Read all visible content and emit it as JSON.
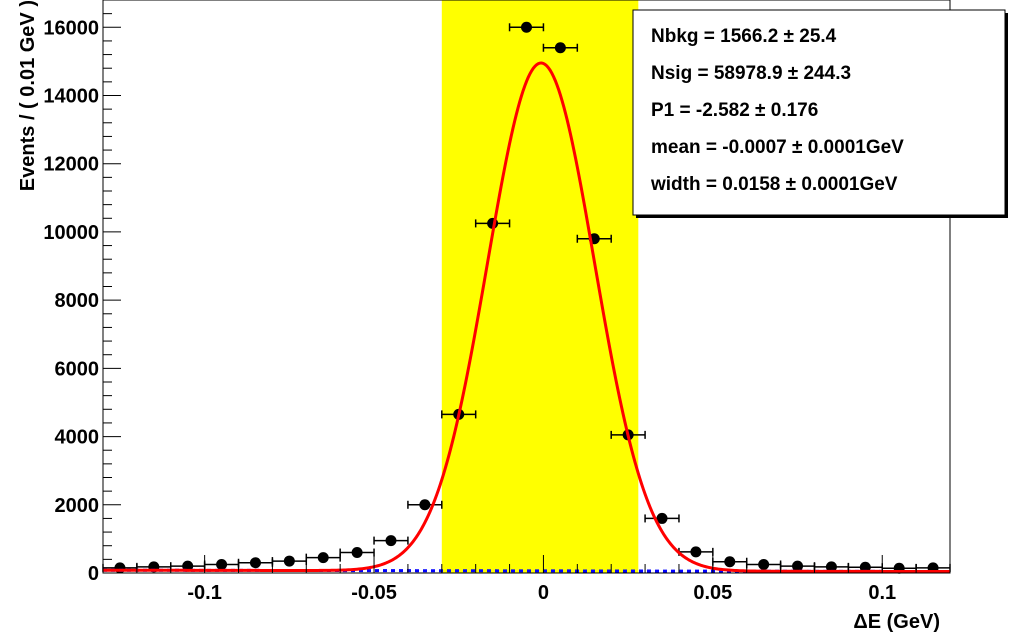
{
  "chart_data": {
    "type": "scatter",
    "xlabel": "ΔE (GeV)",
    "ylabel": "Events / ( 0.01 GeV )",
    "xlim": [
      -0.13,
      0.12
    ],
    "ylim": [
      0,
      16800
    ],
    "x_ticks": [
      -0.1,
      -0.05,
      0,
      0.05,
      0.1
    ],
    "x_tick_labels": [
      "-0.1",
      "-0.05",
      "0",
      "0.05",
      "0.1"
    ],
    "y_ticks": [
      0,
      2000,
      4000,
      6000,
      8000,
      10000,
      12000,
      14000,
      16000
    ],
    "y_tick_labels": [
      "0",
      "2000",
      "4000",
      "6000",
      "8000",
      "10000",
      "12000",
      "14000",
      "16000"
    ],
    "signal_region": [
      -0.03,
      0.028
    ],
    "colors": {
      "signal_region": "#ffff00",
      "total_fit": "#ff0000",
      "background_fit": "#0000ff",
      "data": "#000000"
    },
    "data_points": {
      "bin_half_width": 0.005,
      "x": [
        -0.125,
        -0.115,
        -0.105,
        -0.095,
        -0.085,
        -0.075,
        -0.065,
        -0.055,
        -0.045,
        -0.035,
        -0.025,
        -0.015,
        -0.005,
        0.005,
        0.015,
        0.025,
        0.035,
        0.045,
        0.055,
        0.065,
        0.075,
        0.085,
        0.095,
        0.105,
        0.115
      ],
      "y": [
        150,
        180,
        200,
        250,
        300,
        350,
        450,
        600,
        950,
        2000,
        4650,
        10250,
        16000,
        15400,
        9800,
        4050,
        1600,
        620,
        330,
        250,
        200,
        180,
        170,
        140,
        150
      ]
    },
    "fit": {
      "nbkg": 1566.2,
      "nsig": 58978.9,
      "p1": -2.582,
      "mean": -0.0007,
      "width": 0.0158,
      "bin_width": 0.01
    },
    "stats_box": {
      "position": "top-right",
      "lines": [
        "Nbkg = 1566.2 ± 25.4",
        "Nsig = 58978.9 ± 244.3",
        "P1 = -2.582 ± 0.176",
        "mean = -0.0007 ± 0.0001GeV",
        "width = 0.0158 ± 0.0001GeV"
      ]
    }
  }
}
